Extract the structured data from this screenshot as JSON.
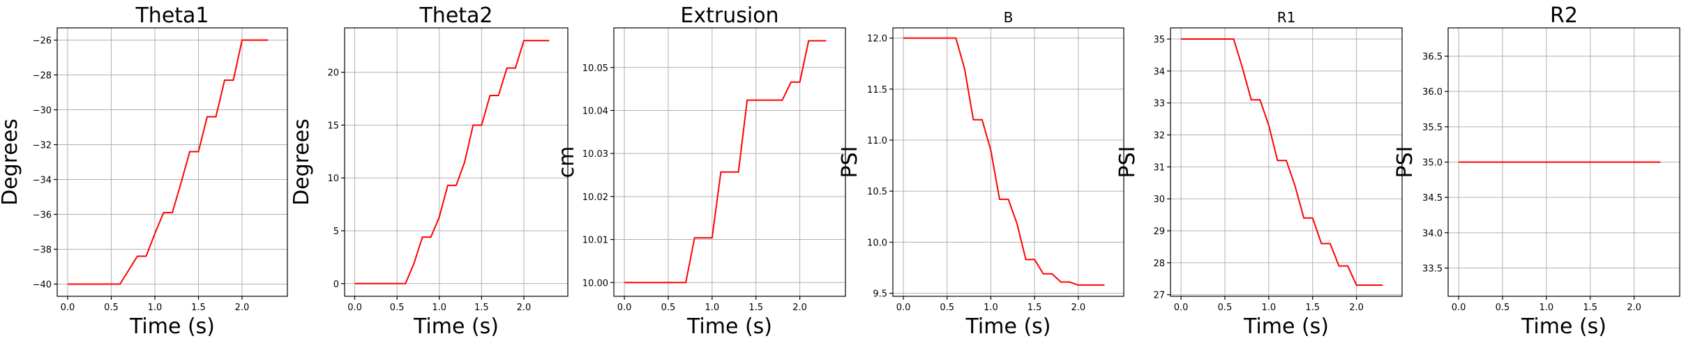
{
  "chart_data": [
    {
      "type": "line",
      "title": "Theta1",
      "xlabel": "Time (s)",
      "ylabel": "Degrees",
      "xlim": [
        -0.12,
        2.52
      ],
      "ylim": [
        -40.7,
        -25.3
      ],
      "xticks": [
        0.0,
        0.5,
        1.0,
        1.5,
        2.0
      ],
      "xtick_labels": [
        "0.0",
        "0.5",
        "1.0",
        "1.5",
        "2.0"
      ],
      "yticks": [
        -40,
        -38,
        -36,
        -34,
        -32,
        -30,
        -28,
        -26
      ],
      "ytick_labels": [
        "−40",
        "−38",
        "−36",
        "−34",
        "−32",
        "−30",
        "−28",
        "−26"
      ],
      "grid": true,
      "series": [
        {
          "color": "#ff0000",
          "x": [
            0.0,
            0.1,
            0.2,
            0.3,
            0.4,
            0.5,
            0.6,
            0.7,
            0.8,
            0.9,
            1.0,
            1.1,
            1.2,
            1.3,
            1.4,
            1.5,
            1.6,
            1.7,
            1.8,
            1.9,
            2.0,
            2.1,
            2.2,
            2.3
          ],
          "y": [
            -40.0,
            -40.0,
            -40.0,
            -40.0,
            -40.0,
            -40.0,
            -40.0,
            -39.2,
            -38.4,
            -38.4,
            -37.1,
            -35.9,
            -35.9,
            -34.2,
            -32.4,
            -32.4,
            -30.4,
            -30.4,
            -28.3,
            -28.3,
            -26.0,
            -26.0,
            -26.0,
            -26.0
          ]
        }
      ]
    },
    {
      "type": "line",
      "title": "Theta2",
      "xlabel": "Time (s)",
      "ylabel": "Degrees",
      "xlim": [
        -0.12,
        2.52
      ],
      "ylim": [
        -1.2,
        24.2
      ],
      "xticks": [
        0.0,
        0.5,
        1.0,
        1.5,
        2.0
      ],
      "xtick_labels": [
        "0.0",
        "0.5",
        "1.0",
        "1.5",
        "2.0"
      ],
      "yticks": [
        0,
        5,
        10,
        15,
        20
      ],
      "ytick_labels": [
        "0",
        "5",
        "10",
        "15",
        "20"
      ],
      "grid": true,
      "series": [
        {
          "color": "#ff0000",
          "x": [
            0.0,
            0.1,
            0.2,
            0.3,
            0.4,
            0.5,
            0.6,
            0.7,
            0.8,
            0.9,
            1.0,
            1.1,
            1.2,
            1.3,
            1.4,
            1.5,
            1.6,
            1.7,
            1.8,
            1.9,
            2.0,
            2.1,
            2.2,
            2.3
          ],
          "y": [
            0.0,
            0.0,
            0.0,
            0.0,
            0.0,
            0.0,
            0.0,
            1.9,
            4.4,
            4.4,
            6.3,
            9.3,
            9.3,
            11.5,
            15.0,
            15.0,
            17.8,
            17.8,
            20.4,
            20.4,
            23.0,
            23.0,
            23.0,
            23.0
          ]
        }
      ]
    },
    {
      "type": "line",
      "title": "Extrusion",
      "xlabel": "Time (s)",
      "ylabel": "cm",
      "xlim": [
        -0.12,
        2.52
      ],
      "ylim": [
        9.9968,
        10.0592
      ],
      "xticks": [
        0.0,
        0.5,
        1.0,
        1.5,
        2.0
      ],
      "xtick_labels": [
        "0.0",
        "0.5",
        "1.0",
        "1.5",
        "2.0"
      ],
      "yticks": [
        10.0,
        10.01,
        10.02,
        10.03,
        10.04,
        10.05
      ],
      "ytick_labels": [
        "10.00",
        "10.01",
        "10.02",
        "10.03",
        "10.04",
        "10.05"
      ],
      "grid": true,
      "series": [
        {
          "color": "#ff0000",
          "x": [
            0.0,
            0.1,
            0.2,
            0.3,
            0.4,
            0.5,
            0.6,
            0.7,
            0.8,
            0.9,
            1.0,
            1.1,
            1.2,
            1.3,
            1.4,
            1.5,
            1.6,
            1.7,
            1.8,
            1.9,
            2.0,
            2.1,
            2.2,
            2.3
          ],
          "y": [
            10.0,
            10.0,
            10.0,
            10.0,
            10.0,
            10.0,
            10.0,
            10.0,
            10.0104,
            10.0104,
            10.0104,
            10.0257,
            10.0257,
            10.0257,
            10.0424,
            10.0424,
            10.0424,
            10.0424,
            10.0424,
            10.0466,
            10.0466,
            10.0562,
            10.0562,
            10.0562
          ]
        }
      ]
    },
    {
      "type": "line",
      "title": "B",
      "xlabel": "Time (s)",
      "ylabel": "PSI",
      "xlim": [
        -0.12,
        2.52
      ],
      "ylim": [
        9.47,
        12.1
      ],
      "xticks": [
        0.0,
        0.5,
        1.0,
        1.5,
        2.0
      ],
      "xtick_labels": [
        "0.0",
        "0.5",
        "1.0",
        "1.5",
        "2.0"
      ],
      "yticks": [
        9.5,
        10.0,
        10.5,
        11.0,
        11.5,
        12.0
      ],
      "ytick_labels": [
        "9.5",
        "10.0",
        "10.5",
        "11.0",
        "11.5",
        "12.0"
      ],
      "grid": true,
      "series": [
        {
          "color": "#ff0000",
          "x": [
            0.0,
            0.1,
            0.2,
            0.3,
            0.4,
            0.5,
            0.6,
            0.7,
            0.8,
            0.9,
            1.0,
            1.1,
            1.2,
            1.3,
            1.4,
            1.5,
            1.6,
            1.7,
            1.8,
            1.9,
            2.0,
            2.1,
            2.2,
            2.3
          ],
          "y": [
            12.0,
            12.0,
            12.0,
            12.0,
            12.0,
            12.0,
            12.0,
            11.7,
            11.2,
            11.2,
            10.9,
            10.42,
            10.42,
            10.18,
            9.83,
            9.83,
            9.69,
            9.69,
            9.61,
            9.61,
            9.58,
            9.58,
            9.58,
            9.58
          ]
        }
      ]
    },
    {
      "type": "line",
      "title": "R1",
      "xlabel": "Time (s)",
      "ylabel": "PSI",
      "xlim": [
        -0.12,
        2.52
      ],
      "ylim": [
        26.95,
        35.35
      ],
      "xticks": [
        0.0,
        0.5,
        1.0,
        1.5,
        2.0
      ],
      "xtick_labels": [
        "0.0",
        "0.5",
        "1.0",
        "1.5",
        "2.0"
      ],
      "yticks": [
        27,
        28,
        29,
        30,
        31,
        32,
        33,
        34,
        35
      ],
      "ytick_labels": [
        "27",
        "28",
        "29",
        "30",
        "31",
        "32",
        "33",
        "34",
        "35"
      ],
      "grid": true,
      "series": [
        {
          "color": "#ff0000",
          "x": [
            0.0,
            0.1,
            0.2,
            0.3,
            0.4,
            0.5,
            0.6,
            0.7,
            0.8,
            0.9,
            1.0,
            1.1,
            1.2,
            1.3,
            1.4,
            1.5,
            1.6,
            1.7,
            1.8,
            1.9,
            2.0,
            2.1,
            2.2,
            2.3
          ],
          "y": [
            35.0,
            35.0,
            35.0,
            35.0,
            35.0,
            35.0,
            35.0,
            34.1,
            33.1,
            33.1,
            32.3,
            31.2,
            31.2,
            30.4,
            29.4,
            29.4,
            28.6,
            28.6,
            27.9,
            27.9,
            27.3,
            27.3,
            27.3,
            27.3
          ]
        }
      ]
    },
    {
      "type": "line",
      "title": "R2",
      "xlabel": "Time (s)",
      "ylabel": "PSI",
      "xlim": [
        -0.12,
        2.52
      ],
      "ylim": [
        33.1,
        36.9
      ],
      "xticks": [
        0.0,
        0.5,
        1.0,
        1.5,
        2.0
      ],
      "xtick_labels": [
        "0.0",
        "0.5",
        "1.0",
        "1.5",
        "2.0"
      ],
      "yticks": [
        33.5,
        34.0,
        34.5,
        35.0,
        35.5,
        36.0,
        36.5
      ],
      "ytick_labels": [
        "33.5",
        "34.0",
        "34.5",
        "35.0",
        "35.5",
        "36.0",
        "36.5"
      ],
      "grid": true,
      "series": [
        {
          "color": "#ff0000",
          "x": [
            0.0,
            2.3
          ],
          "y": [
            35.0,
            35.0
          ]
        }
      ]
    }
  ]
}
